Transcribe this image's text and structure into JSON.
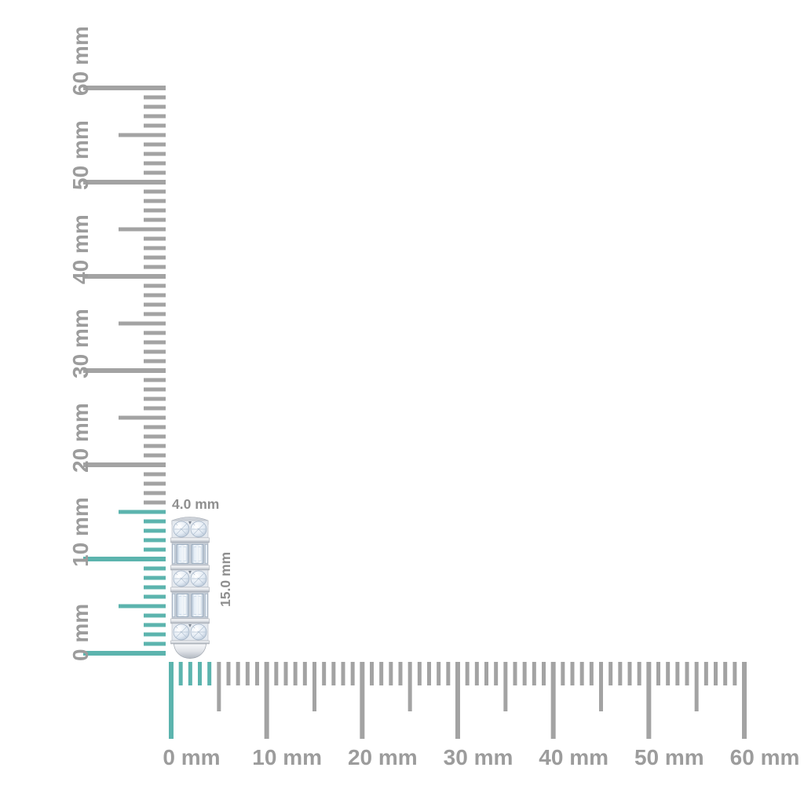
{
  "scene": {
    "background": "#ffffff",
    "description_labels": {
      "width_label": "4.0 mm",
      "height_label": "15.0 mm"
    }
  },
  "rulers": {
    "unit": "mm",
    "max_mm": 60,
    "tick_every_mm": 1,
    "mid_tick_every_mm": 5,
    "major_tick_every_mm": 10,
    "vertical": {
      "labels": [
        "0 mm",
        "10 mm",
        "20 mm",
        "30 mm",
        "40 mm",
        "50 mm",
        "60 mm"
      ],
      "highlight_extent_mm": 15
    },
    "horizontal": {
      "labels": [
        "0 mm",
        "10 mm",
        "20 mm",
        "30 mm",
        "40 mm",
        "50 mm",
        "60 mm"
      ],
      "highlight_extent_mm": 4
    }
  },
  "dimensions": {
    "width_label": "4.0 mm",
    "height_label": "15.0 mm"
  },
  "product": {
    "image_name": "diamond-eternity-band-side-view"
  },
  "colors": {
    "highlight_teal": "#5cb4ae",
    "tick_gray": "#a3a3a3",
    "ruler_label_gray": "#9c9c9c",
    "dimension_label_gray": "#8f8f8f"
  }
}
